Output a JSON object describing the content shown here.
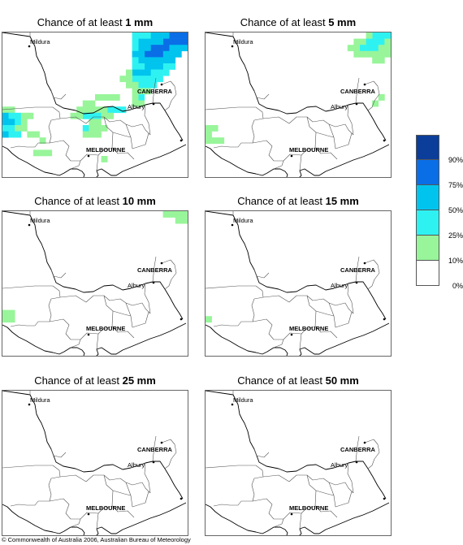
{
  "panels": [
    {
      "prefix": "Chance of at least",
      "amount": "1 mm",
      "cells": "p1"
    },
    {
      "prefix": "Chance of at least",
      "amount": "5 mm",
      "cells": "p5"
    },
    {
      "prefix": "Chance of at least",
      "amount": "10 mm",
      "cells": "p10"
    },
    {
      "prefix": "Chance of at least",
      "amount": "15 mm",
      "cells": "p15"
    },
    {
      "prefix": "Chance of at least",
      "amount": "25 mm",
      "cells": "none"
    },
    {
      "prefix": "Chance of at least",
      "amount": "50 mm",
      "cells": "none"
    }
  ],
  "places": {
    "mildura": "Mildura",
    "canberra": "CANBERRA",
    "albury": "Albury",
    "melbourne": "MELBOURNE"
  },
  "legend": {
    "labels": [
      "90%",
      "75%",
      "50%",
      "25%",
      "10%",
      "0%"
    ],
    "colors": [
      "#0a3e9a",
      "#0a6ee6",
      "#00c4ee",
      "#2ef2f2",
      "#98f59a",
      "#ffffff"
    ]
  },
  "copyright": "© Commonwealth of Australia 2006, Australian Bureau of Meteorology"
}
